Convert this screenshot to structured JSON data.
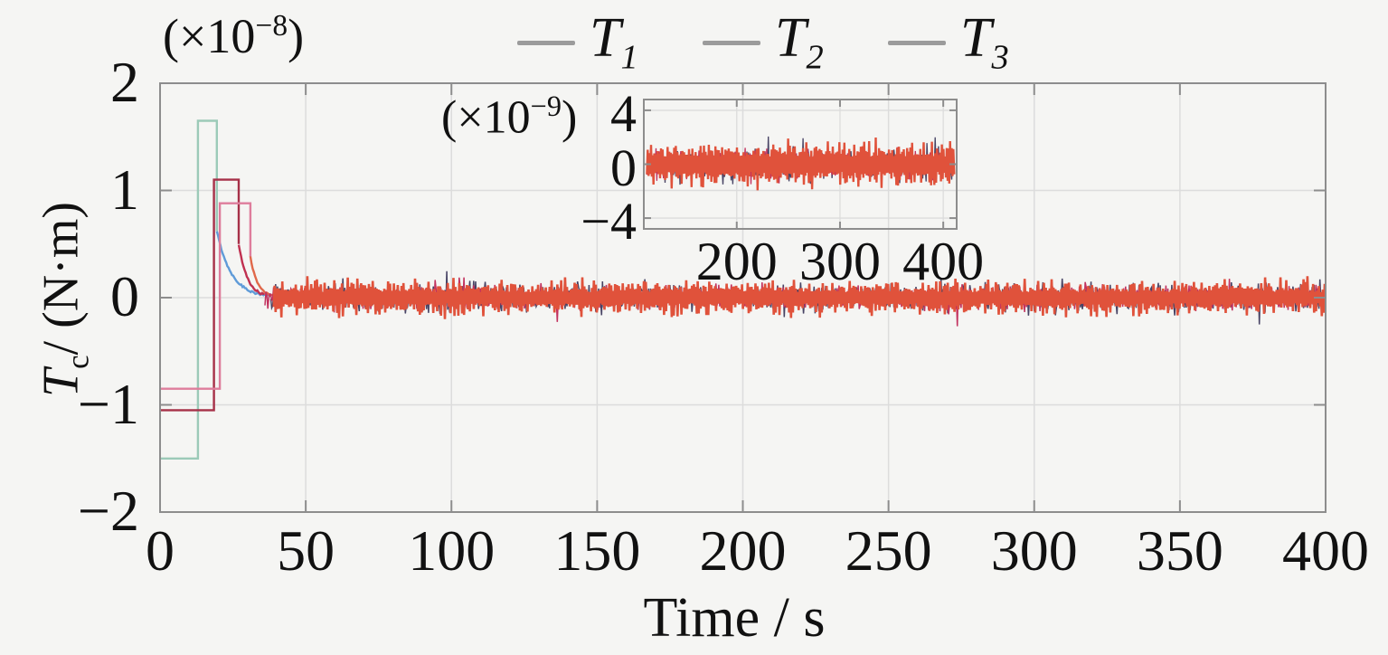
{
  "figure": {
    "background": "#f5f5f3",
    "axis_color": "#8d8d8d",
    "grid_color": "#dcdcdc",
    "text_color": "#111111"
  },
  "legend": {
    "items": [
      {
        "main": "T",
        "sub": "1",
        "swatch_color": "#9b9b9b"
      },
      {
        "main": "T",
        "sub": "2",
        "swatch_color": "#9b9b9b"
      },
      {
        "main": "T",
        "sub": "3",
        "swatch_color": "#9b9b9b"
      }
    ]
  },
  "chart_data": {
    "type": "line",
    "title": "",
    "xlabel": "Time / s",
    "ylabel": {
      "main": "T",
      "sub": "c",
      "rest": "/ (N·m)"
    },
    "scale_label": {
      "pre": "(×10",
      "sup": "−8",
      "post": ")"
    },
    "xlim": [
      0,
      400
    ],
    "ylim": [
      -2,
      2
    ],
    "xticks": {
      "values": [
        0,
        50,
        100,
        150,
        200,
        250,
        300,
        350,
        400
      ],
      "labels": [
        "0",
        "50",
        "100",
        "150",
        "200",
        "250",
        "300",
        "350",
        "400"
      ]
    },
    "yticks": {
      "values": [
        2,
        1,
        0,
        -1,
        -2
      ],
      "labels": [
        "2",
        "1",
        "0",
        "−1",
        "−2"
      ]
    },
    "grid": {
      "x_values": [
        50,
        100,
        150,
        200,
        250,
        300,
        350
      ],
      "y_values": [
        1,
        0,
        -1
      ]
    },
    "legend_position": "top",
    "series": [
      {
        "name": "T1",
        "pulse_color": "#9ccab8",
        "decay_color": "#5f9bd8",
        "noise_color": "#474364",
        "base": -1.5,
        "rise_time": 13,
        "peak": 1.65,
        "fall_time": 19.5,
        "drop_to": 0.62,
        "decay_tau": 5,
        "noise_start": 38,
        "noise": {
          "zigzag": false,
          "sigma": 0.16,
          "offset": 0.03,
          "spike_mult": 1.9,
          "max": 0.3
        }
      },
      {
        "name": "T2",
        "pulse_color": "#a63048",
        "decay_color": "#c03050",
        "noise_color": "#c2315e",
        "base": -1.05,
        "rise_time": 18.5,
        "peak": 1.1,
        "fall_time": 27,
        "drop_to": 0.5,
        "decay_tau": 3,
        "noise_start": 36,
        "noise": {
          "zigzag": false,
          "sigma": 0.14,
          "offset": 0.025,
          "spike_mult": 1.9,
          "max": 0.27
        }
      },
      {
        "name": "T3",
        "pulse_color": "#de7d9c",
        "decay_color": "#e0684a",
        "noise_color": "#e0523b",
        "base": -0.85,
        "rise_time": 20.5,
        "peak": 0.88,
        "fall_time": 31,
        "drop_to": 0.38,
        "decay_tau": 2.5,
        "noise_start": 39,
        "noise": {
          "zigzag": true,
          "core": 0.05,
          "var": 0.16,
          "spike_mult": 1.3,
          "max": 0.2
        }
      }
    ],
    "inset": {
      "scale_label": {
        "pre": "(×10",
        "sup": "−9",
        "post": ")"
      },
      "xlim": [
        110,
        413
      ],
      "ylim": [
        -4.8,
        4.8
      ],
      "xticks": {
        "values": [
          200,
          300,
          400
        ],
        "labels": [
          "200",
          "300",
          "400"
        ]
      },
      "yticks": {
        "values": [
          4,
          0,
          -4
        ],
        "labels": [
          "4",
          "0",
          "−4"
        ]
      },
      "series_noise": [
        {
          "zigzag": false,
          "sigma": 1.6,
          "offset": 0.3,
          "spike_mult": 1.8,
          "max": 3.4
        },
        {
          "zigzag": false,
          "sigma": 1.4,
          "offset": 0.25,
          "spike_mult": 1.8,
          "max": 2.9
        },
        {
          "zigzag": true,
          "core": 0.55,
          "var": 1.5,
          "spike_mult": 1.3,
          "max": 2.2
        }
      ]
    }
  }
}
